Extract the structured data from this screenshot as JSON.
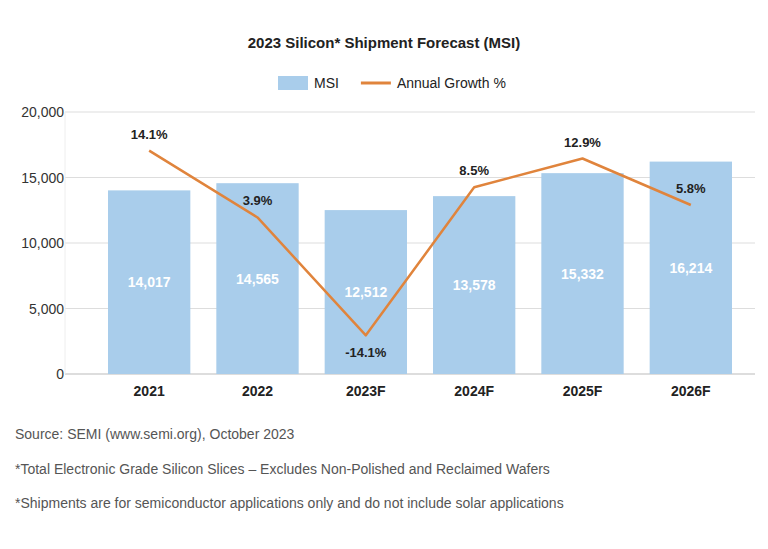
{
  "chart_data": {
    "type": "combo",
    "title": "2023 Silicon* Shipment Forecast (MSI)",
    "categories": [
      "2021",
      "2022",
      "2023F",
      "2024F",
      "2025F",
      "2026F"
    ],
    "series": [
      {
        "name": "MSI",
        "type": "bar",
        "color": "#a9cdeb",
        "values": [
          14017,
          14565,
          12512,
          13578,
          15332,
          16214
        ],
        "value_labels": [
          "14,017",
          "14,565",
          "12,512",
          "13,578",
          "15,332",
          "16,214"
        ]
      },
      {
        "name": "Annual Growth %",
        "type": "line",
        "axis": "y2",
        "color": "#e0843c",
        "values": [
          14.1,
          3.9,
          -14.1,
          8.5,
          12.9,
          5.8
        ],
        "value_labels": [
          "14.1%",
          "3.9%",
          "-14.1%",
          "8.5%",
          "12.9%",
          "5.8%"
        ]
      }
    ],
    "ylim": [
      0,
      20000
    ],
    "yticks": [
      0,
      {
        "value": 5000,
        "label": "5,000"
      },
      {
        "value": 10000,
        "label": "10,000"
      },
      {
        "value": 15000,
        "label": "15,000"
      },
      {
        "value": 20000,
        "label": "20,000"
      }
    ],
    "y2lim": [
      -20,
      20
    ],
    "grid": true,
    "legend": "top",
    "data_labels": true,
    "source": "Source: SEMI (www.semi.org), October 2023",
    "notes": [
      "*Total Electronic Grade Silicon Slices – Excludes Non-Polished and Reclaimed Wafers",
      "*Shipments are for semiconductor applications only and do not include solar applications"
    ]
  }
}
